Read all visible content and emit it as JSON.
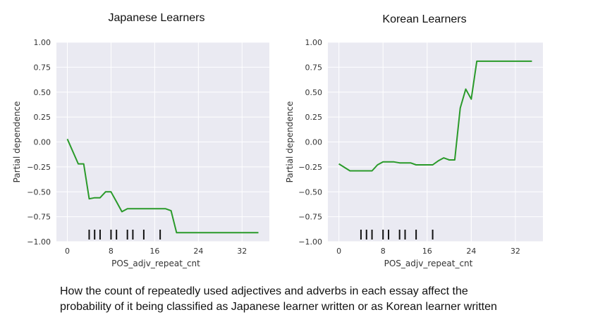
{
  "caption": {
    "line1": "How the count of repeatedly used adjectives and adverbs in each essay affect the",
    "line2": "probability of it being classified as Japanese learner written or as Korean learner written"
  },
  "chart_data": [
    {
      "type": "line",
      "title": "Japanese Learners",
      "xlabel": "POS_adjv_repeat_cnt",
      "ylabel": "Partial dependence",
      "xlim": [
        -2,
        37
      ],
      "ylim": [
        -1.0,
        1.0
      ],
      "xticks": [
        0,
        8,
        16,
        24,
        32
      ],
      "yticks": [
        1.0,
        0.75,
        0.5,
        0.25,
        0.0,
        -0.25,
        -0.5,
        -0.75,
        -1.0
      ],
      "ytick_labels": [
        "1.00",
        "0.75",
        "0.50",
        "0.25",
        "0.00",
        "−0.25",
        "−0.50",
        "−0.75",
        "−1.00"
      ],
      "grid": true,
      "line_color": "#2a9a2a",
      "series": [
        {
          "x": [
            0,
            2,
            3,
            4,
            5,
            6,
            7,
            8,
            9,
            10,
            11,
            12,
            14,
            16,
            17,
            18,
            19,
            20,
            25,
            30,
            35
          ],
          "y": [
            0.03,
            -0.22,
            -0.22,
            -0.57,
            -0.56,
            -0.56,
            -0.5,
            -0.5,
            -0.6,
            -0.7,
            -0.67,
            -0.67,
            -0.67,
            -0.67,
            -0.67,
            -0.67,
            -0.69,
            -0.91,
            -0.91,
            -0.91,
            -0.91
          ]
        }
      ],
      "rug": [
        4,
        5,
        6,
        8,
        9,
        11,
        12,
        14,
        17
      ]
    },
    {
      "type": "line",
      "title": "Korean Learners",
      "xlabel": "POS_adjv_repeat_cnt",
      "ylabel": "Partial dependence",
      "xlim": [
        -2,
        37
      ],
      "ylim": [
        -1.0,
        1.0
      ],
      "xticks": [
        0,
        8,
        16,
        24,
        32
      ],
      "yticks": [
        1.0,
        0.75,
        0.5,
        0.25,
        0.0,
        -0.25,
        -0.5,
        -0.75,
        -1.0
      ],
      "ytick_labels": [
        "1.00",
        "0.75",
        "0.50",
        "0.25",
        "0.00",
        "−0.25",
        "−0.50",
        "−0.75",
        "−1.00"
      ],
      "grid": true,
      "line_color": "#2a9a2a",
      "series": [
        {
          "x": [
            0,
            2,
            4,
            6,
            7,
            8,
            10,
            11,
            13,
            14,
            17,
            18,
            19,
            20,
            21,
            22,
            23,
            24,
            25,
            30,
            35
          ],
          "y": [
            -0.22,
            -0.29,
            -0.29,
            -0.29,
            -0.23,
            -0.2,
            -0.2,
            -0.21,
            -0.21,
            -0.23,
            -0.23,
            -0.19,
            -0.16,
            -0.18,
            -0.18,
            0.34,
            0.53,
            0.43,
            0.81,
            0.81,
            0.81
          ]
        }
      ],
      "rug": [
        4,
        5,
        6,
        8,
        9,
        11,
        12,
        14,
        17
      ]
    }
  ]
}
